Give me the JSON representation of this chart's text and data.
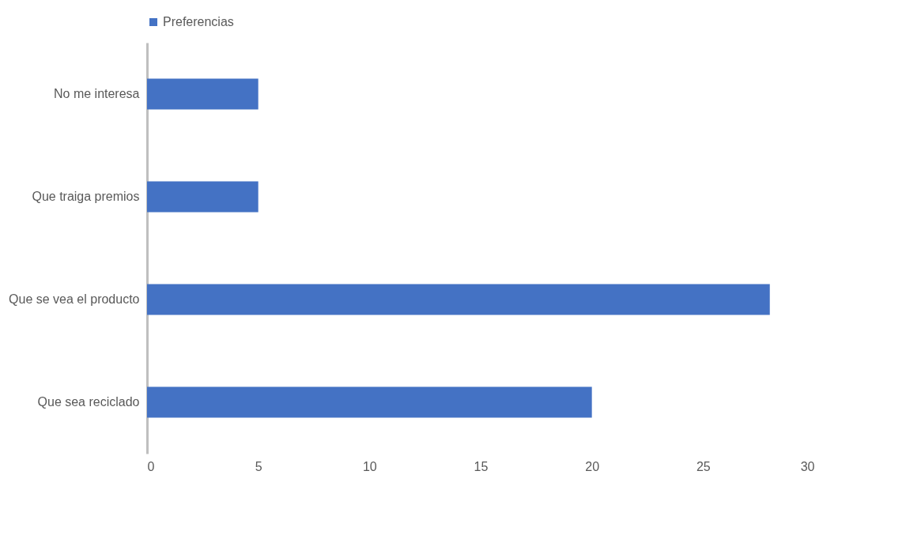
{
  "chart_data": {
    "type": "bar",
    "orientation": "horizontal",
    "categories": [
      "No me interesa",
      "Que traiga premios",
      "Que se vea el producto",
      "Que sea reciclado"
    ],
    "series": [
      {
        "name": "Preferencias",
        "color": "#4472c4",
        "values": [
          5,
          5,
          28,
          20
        ]
      }
    ],
    "xlim": [
      0,
      30
    ],
    "xticks": [
      0,
      5,
      10,
      15,
      20,
      25,
      30
    ],
    "grid": false,
    "legend": "top"
  }
}
